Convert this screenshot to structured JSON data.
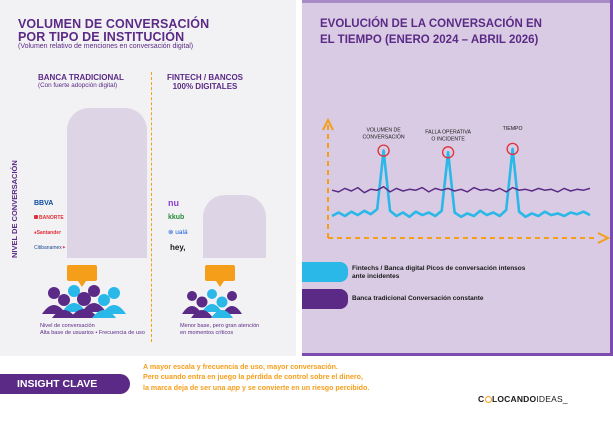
{
  "left": {
    "title_line1": "VOLUMEN DE CONVERSACIÓN",
    "title_line2": "POR TIPO DE INSTITUCIÓN",
    "subtitle": "(Volumen relativo de menciones en conversación digital)",
    "y_label": "NIVEL DE CONVERSACIÓN",
    "col1": {
      "title": "BANCA TRADICIONAL",
      "sub": "(Con fuerte adopción digital)",
      "caption_line1": "Nivel de conversación",
      "caption_line2": "Alta base de usuarios • Frecuencia de uso"
    },
    "col2": {
      "title_line1": "FINTECH / BANCOS",
      "title_line2": "100% DIGITALES",
      "caption_line1": "Menor base, pero gran atención",
      "caption_line2": "en momentos críticos"
    },
    "banks_traditional": [
      "BBVA",
      "BANORTE",
      "Santander",
      "Citibanamex"
    ],
    "banks_digital": [
      "nu",
      "kkub",
      "ualá",
      "hey,"
    ]
  },
  "right": {
    "title_line1": "EVOLUCIÓN DE LA CONVERSACIÓN EN",
    "title_line2": "EL TIEMPO (ENERO 2024 – ABRIL 2026)",
    "peaks": [
      {
        "line1": "VOLUMEN DE",
        "line2": "CONVERSACIÓN"
      },
      {
        "line1": "FALLA OPERATIVA",
        "line2": "O INCIDENTE"
      },
      {
        "line1": "TIEMPO",
        "line2": ""
      }
    ],
    "legend_fintech_line1": "Fintechs / Banca digital  Picos de conversación intensos",
    "legend_fintech_line2": "ante incidentes",
    "legend_traditional": "Banca tradicional Conversación constante"
  },
  "colors": {
    "purple": "#5b2a86",
    "purple_light": "#d9cbe3",
    "orange": "#f59e1a",
    "cyan": "#29b8e8",
    "bar": "#ddd5e5",
    "peak_circle": "#e0303a"
  },
  "insight": {
    "badge": "INSIGHT CLAVE",
    "line1": "A mayor escala y frecuencia de uso, mayor conversación.",
    "line2": "Pero cuando entra en juego la pérdida de control sobre el dinero,",
    "line3_pre": "la marca deja de ser una ",
    "line3_em": "app",
    "line3_post": " y se convierte en un riesgo percibido."
  },
  "logo": {
    "pre": "C",
    "mid": "LOCANDO",
    "post": "IDEAS_"
  },
  "chart_data": [
    {
      "type": "bar",
      "categories": [
        "BANCA TRADICIONAL",
        "FINTECH / BANCOS 100% DIGITALES"
      ],
      "values": [
        100,
        42
      ],
      "ylabel": "NIVEL DE CONVERSACIÓN"
    },
    {
      "type": "line",
      "x": [
        0,
        1,
        2,
        3,
        4,
        5,
        6,
        7,
        8,
        9,
        10,
        11,
        12,
        13,
        14,
        15,
        16,
        17,
        18,
        19,
        20,
        21,
        22,
        23,
        24,
        25,
        26,
        27,
        28,
        29,
        30,
        31,
        32,
        33,
        34,
        35,
        36,
        37,
        38,
        39,
        40
      ],
      "series": [
        {
          "name": "Fintechs / Banca digital",
          "values": [
            14,
            18,
            14,
            19,
            15,
            20,
            16,
            22,
            90,
            20,
            14,
            18,
            13,
            19,
            15,
            18,
            14,
            20,
            88,
            18,
            13,
            17,
            14,
            20,
            15,
            18,
            14,
            21,
            92,
            19,
            13,
            17,
            14,
            19,
            15,
            17,
            14,
            18,
            16,
            19,
            15
          ]
        },
        {
          "name": "Banca tradicional",
          "values": [
            44,
            42,
            46,
            43,
            47,
            41,
            45,
            44,
            48,
            42,
            46,
            43,
            45,
            44,
            47,
            42,
            46,
            44,
            46,
            43,
            45,
            42,
            47,
            44,
            45,
            43,
            46,
            42,
            47,
            44,
            45,
            43,
            46,
            44,
            45,
            42,
            46,
            43,
            45,
            44,
            46
          ]
        }
      ]
    }
  ]
}
